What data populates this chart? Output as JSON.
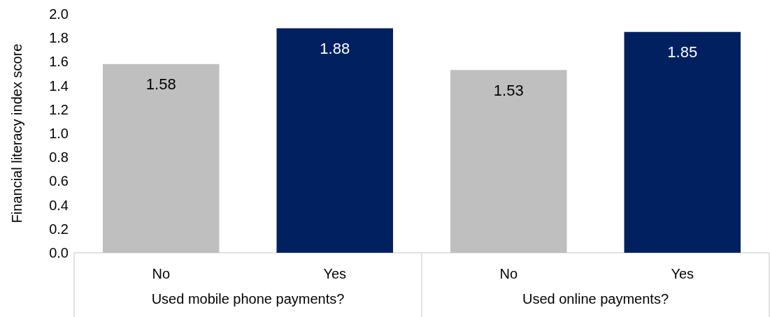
{
  "chart_data": {
    "type": "bar",
    "ylabel": "Financial literacy index score",
    "categories": [
      "No",
      "Yes",
      "No",
      "Yes"
    ],
    "values": [
      1.58,
      1.88,
      1.53,
      1.85
    ],
    "colors": [
      "#bfbfbf",
      "#002060",
      "#bfbfbf",
      "#002060"
    ],
    "ylim": [
      0,
      2
    ],
    "yticks": [
      {
        "value": 0,
        "label": "0.0"
      },
      {
        "value": 0.2,
        "label": "0.2"
      },
      {
        "value": 0.4,
        "label": "0.4"
      },
      {
        "value": 0.6,
        "label": "0.6"
      },
      {
        "value": 0.8,
        "label": "0.8"
      },
      {
        "value": 1,
        "label": "1.0"
      },
      {
        "value": 1.2,
        "label": "1.2"
      },
      {
        "value": 1.4,
        "label": "1.4"
      },
      {
        "value": 1.6,
        "label": "1.6"
      },
      {
        "value": 1.8,
        "label": "1.8"
      },
      {
        "value": 2,
        "label": "2.0"
      }
    ],
    "data_labels": true,
    "grid": false,
    "annotations": [
      "Used mobile phone payments?",
      "Used online payments?"
    ]
  }
}
